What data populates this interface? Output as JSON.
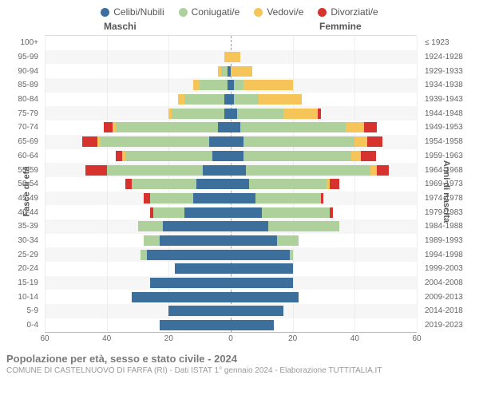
{
  "legend": [
    {
      "label": "Celibi/Nubili",
      "color": "#3c6f9c"
    },
    {
      "label": "Coniugati/e",
      "color": "#aed09a"
    },
    {
      "label": "Vedovi/e",
      "color": "#f6c55a"
    },
    {
      "label": "Divorziati/e",
      "color": "#d6322e"
    }
  ],
  "headers": {
    "male": "Maschi",
    "female": "Femmine"
  },
  "axis_titles": {
    "left": "Fasce di età",
    "right": "Anni di nascita"
  },
  "x_axis": {
    "max": 60,
    "ticks": [
      60,
      40,
      20,
      0,
      20,
      40,
      60
    ]
  },
  "footer": {
    "title": "Popolazione per età, sesso e stato civile - 2024",
    "sub": "COMUNE DI CASTELNUOVO DI FARFA (RI) - Dati ISTAT 1° gennaio 2024 - Elaborazione TUTTITALIA.IT"
  },
  "colors": {
    "celibi": "#3c6f9c",
    "coniugati": "#aed09a",
    "vedovi": "#f6c55a",
    "divorziati": "#d6322e",
    "row_alt": "rgba(230,230,230,0.35)",
    "grid": "#eeeeee"
  },
  "rows": [
    {
      "age": "100+",
      "years": "≤ 1923",
      "m": [
        0,
        0,
        0,
        0
      ],
      "f": [
        0,
        0,
        0,
        0
      ]
    },
    {
      "age": "95-99",
      "years": "1924-1928",
      "m": [
        0,
        0,
        2,
        0
      ],
      "f": [
        0,
        0,
        3,
        0
      ]
    },
    {
      "age": "90-94",
      "years": "1929-1933",
      "m": [
        1,
        2,
        1,
        0
      ],
      "f": [
        0,
        0,
        7,
        0
      ]
    },
    {
      "age": "85-89",
      "years": "1934-1938",
      "m": [
        1,
        9,
        2,
        0
      ],
      "f": [
        1,
        3,
        16,
        0
      ]
    },
    {
      "age": "80-84",
      "years": "1939-1943",
      "m": [
        2,
        13,
        2,
        0
      ],
      "f": [
        1,
        8,
        14,
        0
      ]
    },
    {
      "age": "75-79",
      "years": "1944-1948",
      "m": [
        2,
        17,
        1,
        0
      ],
      "f": [
        2,
        15,
        11,
        1
      ]
    },
    {
      "age": "70-74",
      "years": "1949-1953",
      "m": [
        4,
        33,
        1,
        3
      ],
      "f": [
        3,
        34,
        6,
        4
      ]
    },
    {
      "age": "65-69",
      "years": "1954-1958",
      "m": [
        7,
        35,
        1,
        5
      ],
      "f": [
        4,
        36,
        4,
        5
      ]
    },
    {
      "age": "60-64",
      "years": "1959-1963",
      "m": [
        6,
        28,
        1,
        2
      ],
      "f": [
        4,
        35,
        3,
        5
      ]
    },
    {
      "age": "55-59",
      "years": "1964-1968",
      "m": [
        9,
        31,
        0,
        7
      ],
      "f": [
        5,
        40,
        2,
        4
      ]
    },
    {
      "age": "50-54",
      "years": "1969-1973",
      "m": [
        11,
        21,
        0,
        2
      ],
      "f": [
        6,
        25,
        1,
        3
      ]
    },
    {
      "age": "45-49",
      "years": "1974-1978",
      "m": [
        12,
        14,
        0,
        2
      ],
      "f": [
        8,
        21,
        0,
        1
      ]
    },
    {
      "age": "40-44",
      "years": "1979-1983",
      "m": [
        15,
        10,
        0,
        1
      ],
      "f": [
        10,
        22,
        0,
        1
      ]
    },
    {
      "age": "35-39",
      "years": "1984-1988",
      "m": [
        22,
        8,
        0,
        0
      ],
      "f": [
        12,
        23,
        0,
        0
      ]
    },
    {
      "age": "30-34",
      "years": "1989-1993",
      "m": [
        23,
        5,
        0,
        0
      ],
      "f": [
        15,
        7,
        0,
        0
      ]
    },
    {
      "age": "25-29",
      "years": "1994-1998",
      "m": [
        27,
        2,
        0,
        0
      ],
      "f": [
        19,
        1,
        0,
        0
      ]
    },
    {
      "age": "20-24",
      "years": "1999-2003",
      "m": [
        18,
        0,
        0,
        0
      ],
      "f": [
        20,
        0,
        0,
        0
      ]
    },
    {
      "age": "15-19",
      "years": "2004-2008",
      "m": [
        26,
        0,
        0,
        0
      ],
      "f": [
        20,
        0,
        0,
        0
      ]
    },
    {
      "age": "10-14",
      "years": "2009-2013",
      "m": [
        32,
        0,
        0,
        0
      ],
      "f": [
        22,
        0,
        0,
        0
      ]
    },
    {
      "age": "5-9",
      "years": "2014-2018",
      "m": [
        20,
        0,
        0,
        0
      ],
      "f": [
        17,
        0,
        0,
        0
      ]
    },
    {
      "age": "0-4",
      "years": "2019-2023",
      "m": [
        23,
        0,
        0,
        0
      ],
      "f": [
        14,
        0,
        0,
        0
      ]
    }
  ]
}
